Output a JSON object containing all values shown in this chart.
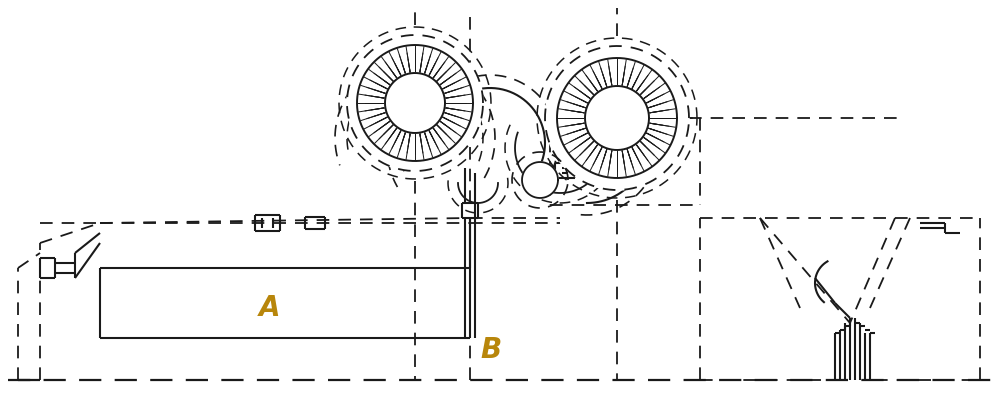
{
  "bg_color": "#ffffff",
  "line_color": "#1a1a1a",
  "label_color": "#b8860b",
  "label_A": "A",
  "label_B": "B",
  "figsize": [
    10.0,
    3.98
  ],
  "dpi": 100,
  "slw": 1.5,
  "dlw": 1.3,
  "blw": 1.6,
  "dash_pat": [
    7,
    5
  ],
  "bdash_pat": [
    10,
    6
  ],
  "sdash_pat": [
    3,
    3
  ]
}
